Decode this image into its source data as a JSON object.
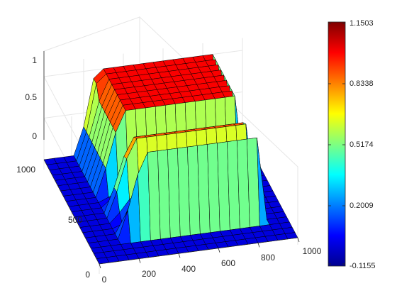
{
  "chart_data": {
    "type": "surface",
    "title": "",
    "xlabel": "",
    "ylabel": "",
    "zlabel": "",
    "x_range": [
      0,
      1000
    ],
    "y_range": [
      0,
      1000
    ],
    "z_range": [
      -0.1155,
      1.1503
    ],
    "x_ticks": [
      "0",
      "200",
      "400",
      "600",
      "800",
      "1000"
    ],
    "y_ticks": [
      "0",
      "500",
      "1000"
    ],
    "z_ticks": [
      "0",
      "0.5",
      "1"
    ],
    "grid": true,
    "colormap": "jet",
    "colorbar": {
      "placement": "right",
      "ticks": [
        "1.1503",
        "0.8338",
        "0.5174",
        "0.2009",
        "-0.1155"
      ],
      "min": -0.1155,
      "max": 1.1503
    },
    "surface_description_values": {
      "flat_region_value": 0,
      "plateau_value": 1,
      "peak_value": 1.1503,
      "min_value": -0.1155
    }
  }
}
